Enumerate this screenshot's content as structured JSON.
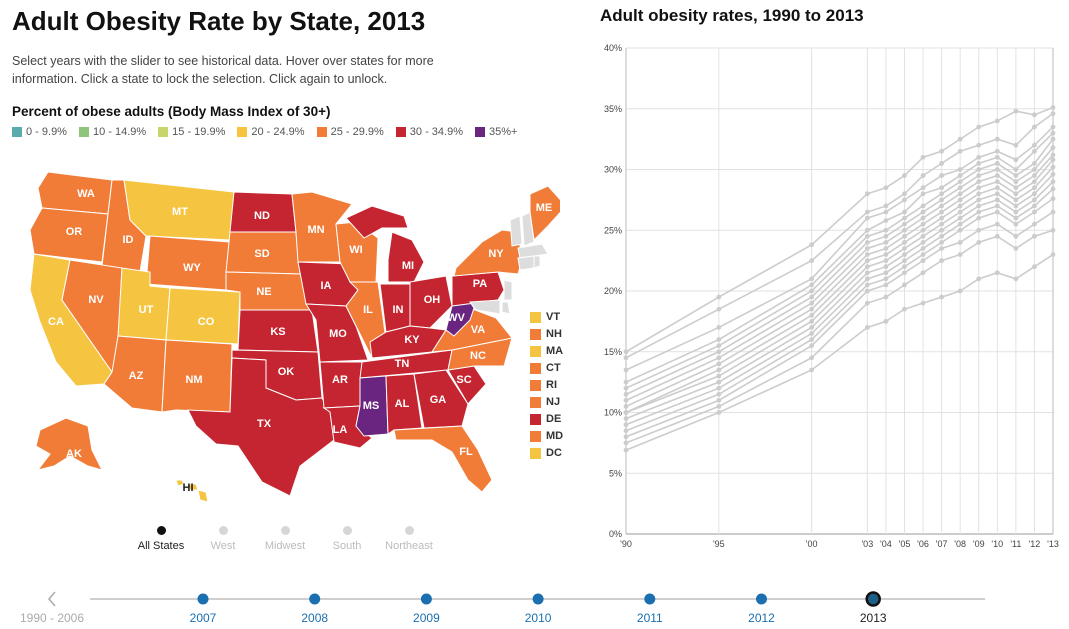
{
  "page": {
    "title": "Adult Obesity Rate by State, 2013",
    "intro": "Select years with the slider to see historical data. Hover over states for more information. Click a state to lock the selection. Click again to unlock.",
    "legend_title": "Percent of obese adults (Body Mass Index of 30+)",
    "line_title": "Adult obesity rates, 1990 to 2013"
  },
  "legend": [
    {
      "label": "0 - 9.9%",
      "color": "#5aabab"
    },
    {
      "label": "10 - 14.9%",
      "color": "#8fc47b"
    },
    {
      "label": "15 - 19.9%",
      "color": "#c9d46c"
    },
    {
      "label": "20 - 24.9%",
      "color": "#f5c542"
    },
    {
      "label": "25 - 29.9%",
      "color": "#f07c38"
    },
    {
      "label": "30 - 34.9%",
      "color": "#c42530"
    },
    {
      "label": "35%+",
      "color": "#6a2580"
    }
  ],
  "small_states": [
    {
      "abbr": "VT",
      "color": "#f5c542"
    },
    {
      "abbr": "NH",
      "color": "#f07c38"
    },
    {
      "abbr": "MA",
      "color": "#f5c542"
    },
    {
      "abbr": "CT",
      "color": "#f07c38"
    },
    {
      "abbr": "RI",
      "color": "#f07c38"
    },
    {
      "abbr": "NJ",
      "color": "#f07c38"
    },
    {
      "abbr": "DE",
      "color": "#c42530"
    },
    {
      "abbr": "MD",
      "color": "#f07c38"
    },
    {
      "abbr": "DC",
      "color": "#f5c542"
    }
  ],
  "regions": [
    "All States",
    "West",
    "Midwest",
    "South",
    "Northeast"
  ],
  "active_region": "All States",
  "timeline": {
    "prev_label": "1990 - 2006",
    "years": [
      "2007",
      "2008",
      "2009",
      "2010",
      "2011",
      "2012",
      "2013"
    ],
    "selected": "2013"
  },
  "map_states": [
    {
      "abbr": "WA",
      "color": "#f07c38"
    },
    {
      "abbr": "OR",
      "color": "#f07c38"
    },
    {
      "abbr": "CA",
      "color": "#f5c542"
    },
    {
      "abbr": "ID",
      "color": "#f07c38"
    },
    {
      "abbr": "NV",
      "color": "#f07c38"
    },
    {
      "abbr": "MT",
      "color": "#f5c542"
    },
    {
      "abbr": "WY",
      "color": "#f07c38"
    },
    {
      "abbr": "UT",
      "color": "#f5c542"
    },
    {
      "abbr": "CO",
      "color": "#f5c542"
    },
    {
      "abbr": "AZ",
      "color": "#f07c38"
    },
    {
      "abbr": "NM",
      "color": "#f07c38"
    },
    {
      "abbr": "ND",
      "color": "#c42530"
    },
    {
      "abbr": "SD",
      "color": "#f07c38"
    },
    {
      "abbr": "NE",
      "color": "#f07c38"
    },
    {
      "abbr": "KS",
      "color": "#c42530"
    },
    {
      "abbr": "OK",
      "color": "#c42530"
    },
    {
      "abbr": "TX",
      "color": "#c42530"
    },
    {
      "abbr": "MN",
      "color": "#f07c38"
    },
    {
      "abbr": "IA",
      "color": "#c42530"
    },
    {
      "abbr": "MO",
      "color": "#c42530"
    },
    {
      "abbr": "AR",
      "color": "#c42530"
    },
    {
      "abbr": "LA",
      "color": "#c42530"
    },
    {
      "abbr": "WI",
      "color": "#f07c38"
    },
    {
      "abbr": "IL",
      "color": "#f07c38"
    },
    {
      "abbr": "MI",
      "color": "#c42530"
    },
    {
      "abbr": "IN",
      "color": "#c42530"
    },
    {
      "abbr": "OH",
      "color": "#c42530"
    },
    {
      "abbr": "KY",
      "color": "#c42530"
    },
    {
      "abbr": "TN",
      "color": "#c42530"
    },
    {
      "abbr": "MS",
      "color": "#6a2580"
    },
    {
      "abbr": "AL",
      "color": "#c42530"
    },
    {
      "abbr": "GA",
      "color": "#c42530"
    },
    {
      "abbr": "FL",
      "color": "#f07c38"
    },
    {
      "abbr": "SC",
      "color": "#c42530"
    },
    {
      "abbr": "NC",
      "color": "#f07c38"
    },
    {
      "abbr": "VA",
      "color": "#f07c38"
    },
    {
      "abbr": "WV",
      "color": "#6a2580"
    },
    {
      "abbr": "PA",
      "color": "#c42530"
    },
    {
      "abbr": "NY",
      "color": "#f07c38"
    },
    {
      "abbr": "ME",
      "color": "#f07c38"
    },
    {
      "abbr": "AK",
      "color": "#f07c38"
    },
    {
      "abbr": "HI",
      "color": "#f5c542"
    }
  ],
  "chart_data": {
    "type": "line",
    "title": "Adult obesity rates, 1990 to 2013",
    "x": [
      1990,
      1995,
      2000,
      2003,
      2004,
      2005,
      2006,
      2007,
      2008,
      2009,
      2010,
      2011,
      2012,
      2013
    ],
    "x_tick_labels": [
      "'90",
      "'95",
      "'00",
      "'03",
      "'04",
      "'05",
      "'06",
      "'07",
      "'08",
      "'09",
      "'10",
      "'11",
      "'12",
      "'13"
    ],
    "y_ticks": [
      "0%",
      "5%",
      "10%",
      "15%",
      "20%",
      "25%",
      "30%",
      "35%",
      "40%"
    ],
    "ylim": [
      0,
      40
    ],
    "grid": true,
    "line_color": "#cccccc",
    "series": [
      {
        "values": [
          15.0,
          19.5,
          23.8,
          28.0,
          28.5,
          29.5,
          31.0,
          31.5,
          32.5,
          33.5,
          34.0,
          34.8,
          34.5,
          35.1
        ]
      },
      {
        "values": [
          14.5,
          18.5,
          22.5,
          26.5,
          27.0,
          28.0,
          29.5,
          30.5,
          31.5,
          32.0,
          32.5,
          32.0,
          33.5,
          34.6
        ]
      },
      {
        "values": [
          13.5,
          17.0,
          21.0,
          26.0,
          26.5,
          27.5,
          28.5,
          29.5,
          30.0,
          31.0,
          31.5,
          30.8,
          32.0,
          33.5
        ]
      },
      {
        "values": [
          12.5,
          16.0,
          20.5,
          25.0,
          25.8,
          26.5,
          28.0,
          28.5,
          29.5,
          30.5,
          31.0,
          30.0,
          31.5,
          33.0
        ]
      },
      {
        "values": [
          12.0,
          15.5,
          20.0,
          24.5,
          25.0,
          26.0,
          27.0,
          28.0,
          29.0,
          30.0,
          30.5,
          29.5,
          30.5,
          32.5
        ]
      },
      {
        "values": [
          11.5,
          15.0,
          19.5,
          24.0,
          24.5,
          25.5,
          26.5,
          27.5,
          28.5,
          29.5,
          30.0,
          29.0,
          30.0,
          31.8
        ]
      },
      {
        "values": [
          11.0,
          14.5,
          19.0,
          23.5,
          24.0,
          25.0,
          26.0,
          27.0,
          28.0,
          29.0,
          29.5,
          28.5,
          29.5,
          31.2
        ]
      },
      {
        "values": [
          10.5,
          14.0,
          18.5,
          23.0,
          23.5,
          24.5,
          25.5,
          26.5,
          27.5,
          28.5,
          29.0,
          28.0,
          29.0,
          30.8
        ]
      },
      {
        "values": [
          10.0,
          13.5,
          18.0,
          22.5,
          23.0,
          24.0,
          25.0,
          26.0,
          27.0,
          28.0,
          28.5,
          27.5,
          28.5,
          30.2
        ]
      },
      {
        "values": [
          10.0,
          13.0,
          17.5,
          22.0,
          22.5,
          23.5,
          24.5,
          25.5,
          26.5,
          27.5,
          28.0,
          27.0,
          28.0,
          29.6
        ]
      },
      {
        "values": [
          9.5,
          12.5,
          17.0,
          21.5,
          22.0,
          23.0,
          24.0,
          25.0,
          26.0,
          27.0,
          27.5,
          26.5,
          27.5,
          29.0
        ]
      },
      {
        "values": [
          9.0,
          12.0,
          16.5,
          21.0,
          21.5,
          22.5,
          23.5,
          24.5,
          25.5,
          26.5,
          27.0,
          26.0,
          27.0,
          28.4
        ]
      },
      {
        "values": [
          8.5,
          11.5,
          16.0,
          20.5,
          21.0,
          22.0,
          23.0,
          24.0,
          25.0,
          26.0,
          26.5,
          25.5,
          26.5,
          27.6
        ]
      },
      {
        "values": [
          8.0,
          11.0,
          15.5,
          20.0,
          20.5,
          21.5,
          22.5,
          23.5,
          24.0,
          25.0,
          25.5,
          24.5,
          25.5,
          26.5
        ]
      },
      {
        "values": [
          7.5,
          10.5,
          14.5,
          19.0,
          19.5,
          20.5,
          21.5,
          22.5,
          23.0,
          24.0,
          24.5,
          23.5,
          24.5,
          25.0
        ]
      },
      {
        "values": [
          6.9,
          10.0,
          13.5,
          17.0,
          17.5,
          18.5,
          19.0,
          19.5,
          20.0,
          21.0,
          21.5,
          21.0,
          22.0,
          23.0
        ]
      }
    ]
  }
}
